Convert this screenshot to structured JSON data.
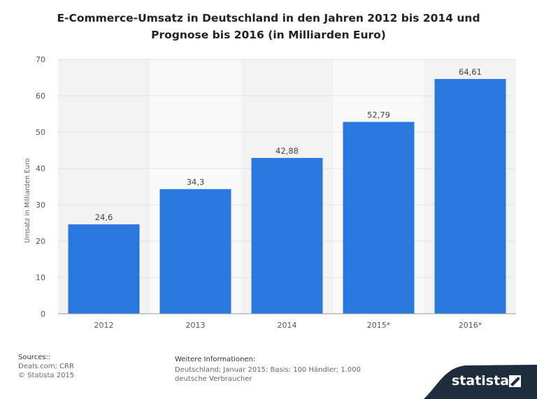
{
  "chart_data": {
    "type": "bar",
    "title_lines": [
      "E-Commerce-Umsatz in Deutschland in den Jahren 2012 bis 2014 und",
      "Prognose bis 2016 (in Milliarden Euro)"
    ],
    "categories": [
      "2012",
      "2013",
      "2014",
      "2015*",
      "2016*"
    ],
    "values": [
      24.6,
      34.3,
      42.88,
      52.79,
      64.61
    ],
    "value_labels": [
      "24,6",
      "34,3",
      "42,88",
      "52,79",
      "64,61"
    ],
    "ylabel": "Umsatz in Milliarden Euro",
    "xlabel": "",
    "ylim": [
      0,
      70
    ],
    "yticks": [
      0,
      10,
      20,
      30,
      40,
      50,
      60,
      70
    ],
    "grid": true,
    "bar_color": "#2a77dd"
  },
  "footer": {
    "sources_heading": "Sources::",
    "sources_lines": [
      "Deals.com; CRR",
      "© Statista 2015"
    ],
    "more_heading": "Weitere Informationen:",
    "more_text": "Deutschland; Januar 2015; Basis: 100 Händler; 1.000 deutsche Verbraucher"
  },
  "brand": {
    "name": "statista",
    "background": "#1d2d3e"
  }
}
